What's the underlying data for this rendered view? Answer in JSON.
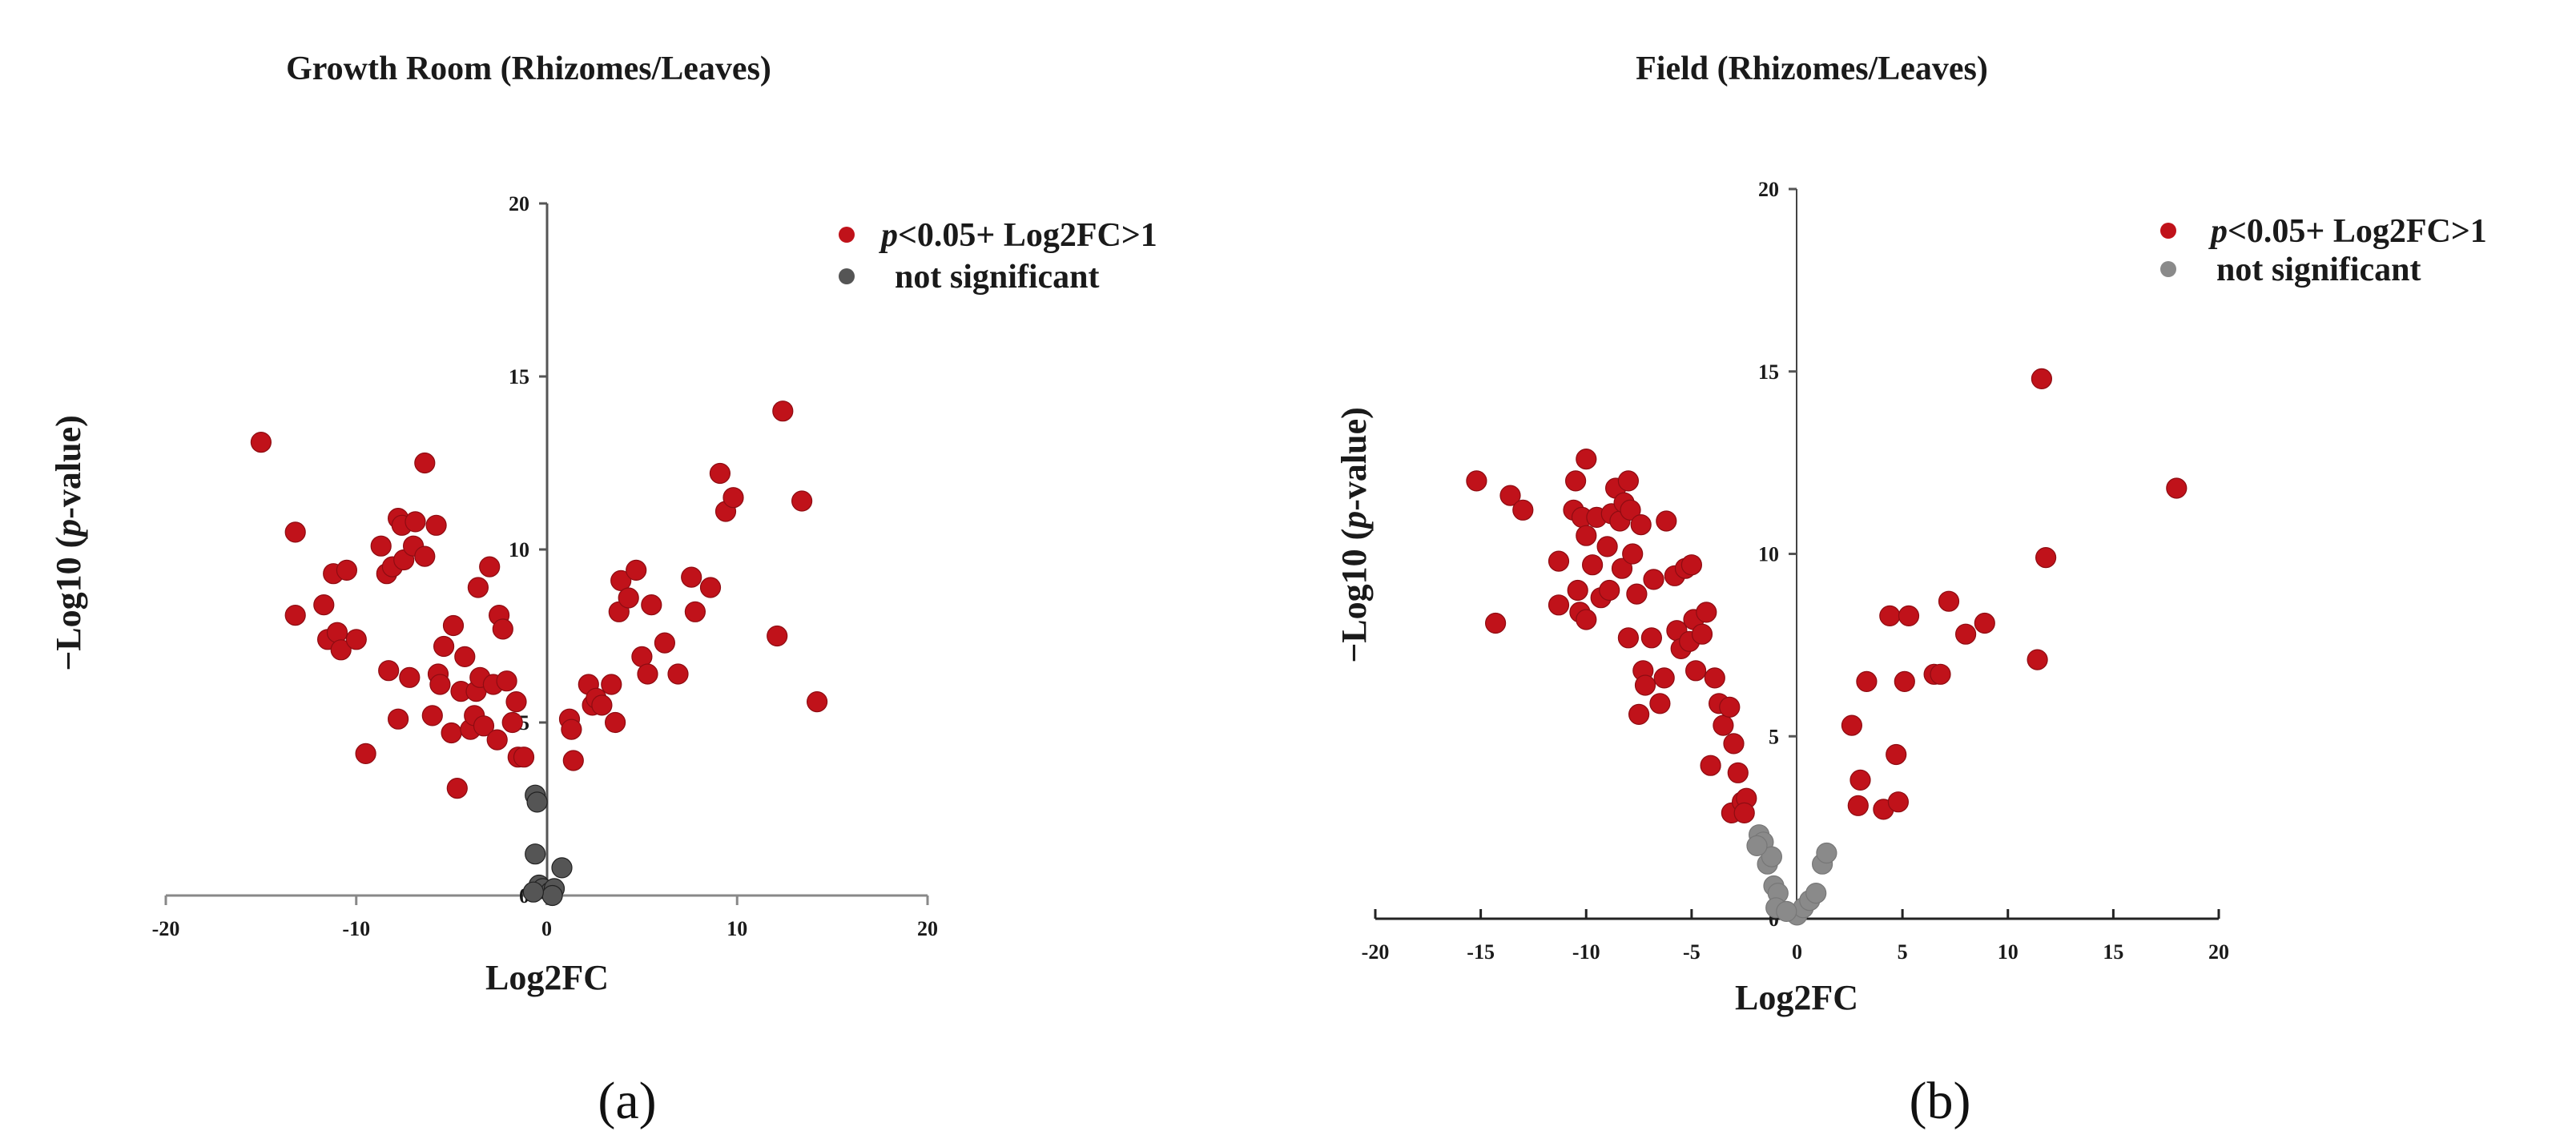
{
  "colors": {
    "significant": "#c0121a",
    "not_significant_a": "#555555",
    "not_significant_b": "#8a8a8a",
    "axis": "#888888",
    "text": "#1a1a1a"
  },
  "chart_data": [
    {
      "type": "scatter",
      "title": "Growth Room (Rhizomes/Leaves)",
      "xlabel": "Log2FC",
      "ylabel_parts": [
        "−Log10 (",
        "p",
        "-value)"
      ],
      "panel_label": "(a)",
      "xlim": [
        -20,
        20
      ],
      "ylim": [
        0,
        20
      ],
      "x_ticks": [
        "-20",
        "-10",
        "0",
        "10",
        "20"
      ],
      "y_ticks": [
        "0",
        "5",
        "10",
        "15",
        "20"
      ],
      "legend": [
        {
          "italic": "p",
          "text": "<0.05+ Log2FC>1"
        },
        {
          "text": "not significant"
        }
      ],
      "series": [
        {
          "name": "p<0.05+ Log2FC>1",
          "points": [
            [
              -15.0,
              13.1
            ],
            [
              -13.2,
              10.5
            ],
            [
              -13.2,
              8.1
            ],
            [
              -11.7,
              8.4
            ],
            [
              -11.5,
              7.4
            ],
            [
              -11.2,
              9.3
            ],
            [
              -11.0,
              7.6
            ],
            [
              -10.8,
              7.1
            ],
            [
              -10.5,
              9.4
            ],
            [
              -10.0,
              7.4
            ],
            [
              -9.5,
              4.1
            ],
            [
              -8.7,
              10.1
            ],
            [
              -8.4,
              9.3
            ],
            [
              -8.3,
              6.5
            ],
            [
              -8.1,
              9.5
            ],
            [
              -7.8,
              5.1
            ],
            [
              -7.8,
              10.9
            ],
            [
              -7.6,
              10.7
            ],
            [
              -7.5,
              9.7
            ],
            [
              -7.2,
              6.3
            ],
            [
              -7.0,
              10.1
            ],
            [
              -6.9,
              10.8
            ],
            [
              -6.4,
              12.5
            ],
            [
              -6.4,
              9.8
            ],
            [
              -6.0,
              5.2
            ],
            [
              -5.8,
              10.7
            ],
            [
              -5.7,
              6.4
            ],
            [
              -5.6,
              6.1
            ],
            [
              -5.4,
              7.2
            ],
            [
              -5.0,
              4.7
            ],
            [
              -4.9,
              7.8
            ],
            [
              -4.7,
              3.1
            ],
            [
              -4.5,
              5.9
            ],
            [
              -4.3,
              6.9
            ],
            [
              -4.0,
              4.8
            ],
            [
              -3.8,
              5.2
            ],
            [
              -3.7,
              5.9
            ],
            [
              -3.6,
              8.9
            ],
            [
              -3.5,
              6.3
            ],
            [
              -3.3,
              4.9
            ],
            [
              -3.0,
              9.5
            ],
            [
              -2.8,
              6.1
            ],
            [
              -2.6,
              4.5
            ],
            [
              -2.5,
              8.1
            ],
            [
              -2.3,
              7.7
            ],
            [
              -2.1,
              6.2
            ],
            [
              -1.8,
              5.0
            ],
            [
              -1.6,
              5.6
            ],
            [
              -1.5,
              4.0
            ],
            [
              -1.2,
              4.0
            ],
            [
              1.2,
              5.1
            ],
            [
              1.3,
              4.8
            ],
            [
              1.4,
              3.9
            ],
            [
              2.2,
              6.1
            ],
            [
              2.4,
              5.5
            ],
            [
              2.6,
              5.7
            ],
            [
              2.9,
              5.5
            ],
            [
              3.4,
              6.1
            ],
            [
              3.6,
              5.0
            ],
            [
              3.8,
              8.2
            ],
            [
              3.9,
              9.1
            ],
            [
              4.3,
              8.6
            ],
            [
              4.7,
              9.4
            ],
            [
              5.0,
              6.9
            ],
            [
              5.3,
              6.4
            ],
            [
              5.5,
              8.4
            ],
            [
              6.2,
              7.3
            ],
            [
              6.9,
              6.4
            ],
            [
              7.6,
              9.2
            ],
            [
              7.8,
              8.2
            ],
            [
              8.6,
              8.9
            ],
            [
              9.1,
              12.2
            ],
            [
              9.4,
              11.1
            ],
            [
              9.8,
              11.5
            ],
            [
              12.1,
              7.5
            ],
            [
              12.4,
              14.0
            ],
            [
              13.4,
              11.4
            ],
            [
              14.2,
              5.6
            ]
          ]
        },
        {
          "name": "not significant",
          "points": [
            [
              -0.6,
              2.9
            ],
            [
              -0.5,
              2.7
            ],
            [
              -0.6,
              1.2
            ],
            [
              -0.4,
              0.3
            ],
            [
              -0.2,
              0.2
            ],
            [
              0.2,
              0.1
            ],
            [
              0.4,
              0.2
            ],
            [
              0.8,
              0.8
            ],
            [
              0.3,
              0.0
            ],
            [
              -0.7,
              0.1
            ]
          ]
        }
      ]
    },
    {
      "type": "scatter",
      "title": "Field (Rhizomes/Leaves)",
      "xlabel": "Log2FC",
      "ylabel_parts": [
        "−Log10 (",
        "p",
        "-value)"
      ],
      "panel_label": "(b)",
      "xlim": [
        -20,
        20
      ],
      "ylim": [
        0,
        20
      ],
      "x_ticks": [
        "-20",
        "-15",
        "-10",
        "-5",
        "0",
        "5",
        "10",
        "15",
        "20"
      ],
      "y_ticks": [
        "0",
        "5",
        "10",
        "15",
        "20"
      ],
      "legend": [
        {
          "italic": "p",
          "text": "<0.05+ Log2FC>1"
        },
        {
          "text": "not significant"
        }
      ],
      "series": [
        {
          "name": "p<0.05+ Log2FC>1",
          "points": [
            [
              -15.2,
              12.0
            ],
            [
              -14.3,
              8.1
            ],
            [
              -13.6,
              11.6
            ],
            [
              -13.0,
              11.2
            ],
            [
              -11.3,
              9.8
            ],
            [
              -11.3,
              8.6
            ],
            [
              -10.6,
              11.2
            ],
            [
              -10.5,
              12.0
            ],
            [
              -10.4,
              9.0
            ],
            [
              -10.3,
              8.4
            ],
            [
              -10.2,
              11.0
            ],
            [
              -10.0,
              12.6
            ],
            [
              -10.0,
              10.5
            ],
            [
              -10.0,
              8.2
            ],
            [
              -9.7,
              9.7
            ],
            [
              -9.5,
              11.0
            ],
            [
              -9.3,
              8.8
            ],
            [
              -9.0,
              10.2
            ],
            [
              -8.9,
              9.0
            ],
            [
              -8.8,
              11.1
            ],
            [
              -8.6,
              11.8
            ],
            [
              -8.4,
              10.9
            ],
            [
              -8.3,
              9.6
            ],
            [
              -8.2,
              11.4
            ],
            [
              -8.0,
              7.7
            ],
            [
              -8.0,
              12.0
            ],
            [
              -7.9,
              11.2
            ],
            [
              -7.8,
              10.0
            ],
            [
              -7.6,
              8.9
            ],
            [
              -7.5,
              5.6
            ],
            [
              -7.4,
              10.8
            ],
            [
              -7.3,
              6.8
            ],
            [
              -7.2,
              6.4
            ],
            [
              -6.9,
              7.7
            ],
            [
              -6.8,
              9.3
            ],
            [
              -6.5,
              5.9
            ],
            [
              -6.3,
              6.6
            ],
            [
              -6.2,
              10.9
            ],
            [
              -5.8,
              9.4
            ],
            [
              -5.7,
              7.9
            ],
            [
              -5.5,
              7.4
            ],
            [
              -5.3,
              9.6
            ],
            [
              -5.1,
              7.6
            ],
            [
              -5.0,
              9.7
            ],
            [
              -4.9,
              8.2
            ],
            [
              -4.8,
              6.8
            ],
            [
              -4.5,
              7.8
            ],
            [
              -4.3,
              8.4
            ],
            [
              -4.1,
              4.2
            ],
            [
              -3.9,
              6.6
            ],
            [
              -3.7,
              5.9
            ],
            [
              -3.5,
              5.3
            ],
            [
              -3.2,
              5.8
            ],
            [
              -3.1,
              2.9
            ],
            [
              -3.0,
              4.8
            ],
            [
              -2.8,
              4.0
            ],
            [
              -2.6,
              3.2
            ],
            [
              -2.4,
              3.3
            ],
            [
              -2.5,
              2.9
            ],
            [
              2.6,
              5.3
            ],
            [
              2.9,
              3.1
            ],
            [
              3.0,
              3.8
            ],
            [
              3.3,
              6.5
            ],
            [
              4.1,
              3.0
            ],
            [
              4.4,
              8.3
            ],
            [
              4.7,
              4.5
            ],
            [
              4.8,
              3.2
            ],
            [
              5.1,
              6.5
            ],
            [
              5.3,
              8.3
            ],
            [
              6.5,
              6.7
            ],
            [
              6.8,
              6.7
            ],
            [
              7.2,
              8.7
            ],
            [
              8.0,
              7.8
            ],
            [
              8.9,
              8.1
            ],
            [
              11.4,
              7.1
            ],
            [
              11.6,
              14.8
            ],
            [
              11.8,
              9.9
            ],
            [
              18.0,
              11.8
            ]
          ]
        },
        {
          "name": "not significant",
          "points": [
            [
              -1.8,
              2.3
            ],
            [
              -1.6,
              2.1
            ],
            [
              -1.4,
              1.5
            ],
            [
              -1.2,
              1.7
            ],
            [
              -1.1,
              0.9
            ],
            [
              -0.9,
              0.7
            ],
            [
              -1.0,
              0.3
            ],
            [
              0.0,
              0.1
            ],
            [
              0.3,
              0.3
            ],
            [
              0.6,
              0.5
            ],
            [
              0.9,
              0.7
            ],
            [
              1.2,
              1.5
            ],
            [
              1.4,
              1.8
            ],
            [
              -1.9,
              2.0
            ],
            [
              -0.5,
              0.2
            ]
          ]
        }
      ]
    }
  ]
}
